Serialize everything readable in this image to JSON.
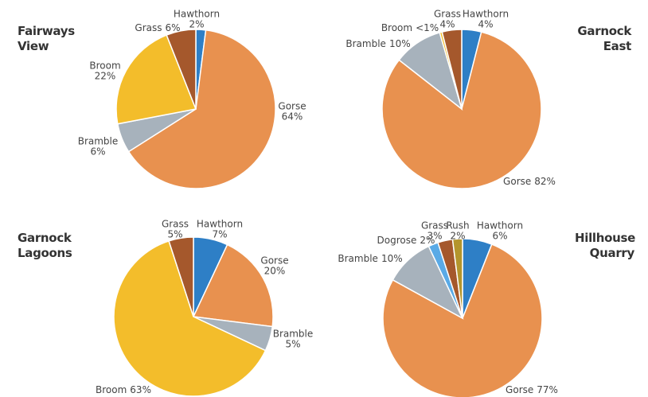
{
  "chart_data": [
    {
      "type": "pie",
      "title": "Fairways View",
      "categories": [
        "Hawthorn",
        "Gorse",
        "Bramble",
        "Broom",
        "Grass"
      ],
      "values": [
        2,
        64,
        6,
        22,
        6
      ],
      "value_labels": [
        "2%",
        "64%",
        "6%",
        "22%",
        "6%"
      ],
      "colors": [
        "#2e7fc6",
        "#e8914f",
        "#a7b2bc",
        "#f3bd2b",
        "#a5582c"
      ]
    },
    {
      "type": "pie",
      "title": "Garnock East",
      "categories": [
        "Hawthorn",
        "Gorse",
        "Bramble",
        "Broom",
        "Grass"
      ],
      "values": [
        4,
        82,
        10,
        0.5,
        4
      ],
      "value_labels": [
        "4%",
        "82%",
        "10%",
        "<1%",
        "4%"
      ],
      "colors": [
        "#2e7fc6",
        "#e8914f",
        "#a7b2bc",
        "#f3bd2b",
        "#a5582c"
      ]
    },
    {
      "type": "pie",
      "title": "Garnock Lagoons",
      "categories": [
        "Hawthorn",
        "Gorse",
        "Bramble",
        "Broom",
        "Grass"
      ],
      "values": [
        7,
        20,
        5,
        63,
        5
      ],
      "value_labels": [
        "7%",
        "20%",
        "5%",
        "63%",
        "5%"
      ],
      "colors": [
        "#2e7fc6",
        "#e8914f",
        "#a7b2bc",
        "#f3bd2b",
        "#a5582c"
      ]
    },
    {
      "type": "pie",
      "title": "Hillhouse Quarry",
      "categories": [
        "Hawthorn",
        "Gorse",
        "Bramble",
        "Dogrose",
        "Grass",
        "Rush"
      ],
      "values": [
        6,
        77,
        10,
        2,
        3,
        2
      ],
      "value_labels": [
        "6%",
        "77%",
        "10%",
        "2%",
        "3%",
        "2%"
      ],
      "colors": [
        "#2e7fc6",
        "#e8914f",
        "#a7b2bc",
        "#5aaae6",
        "#a5582c",
        "#b4952c"
      ]
    }
  ]
}
